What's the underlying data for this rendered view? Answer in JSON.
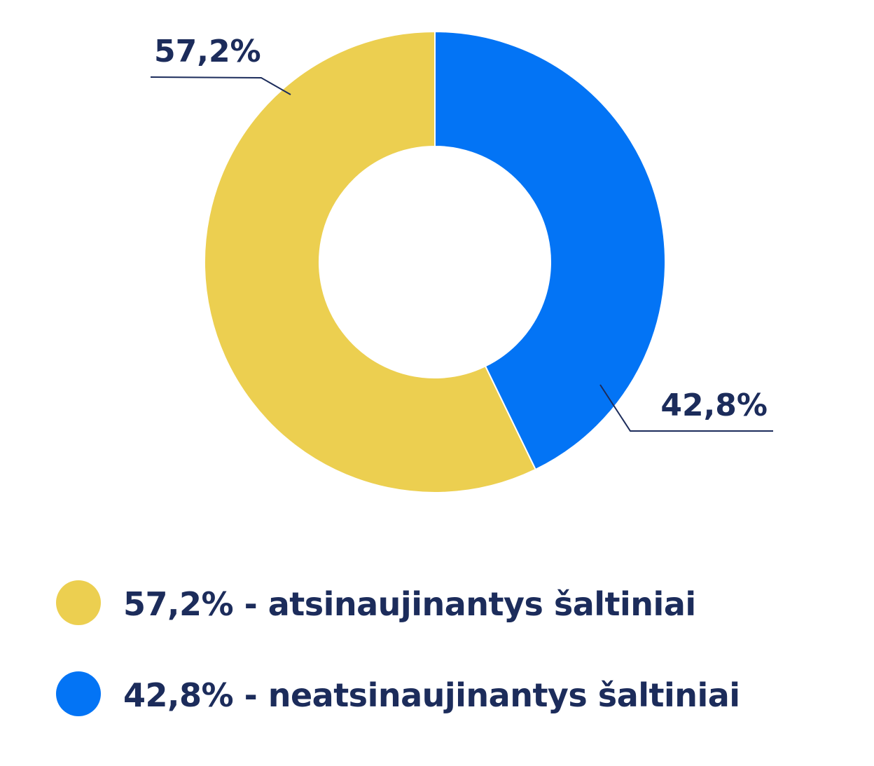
{
  "chart_data": {
    "type": "pie",
    "variant": "donut",
    "title": "",
    "slices": [
      {
        "name": "atsinaujinantys šaltiniai",
        "value": 57.2,
        "label": "57,2%",
        "legend": "57,2% - atsinaujinantys šaltiniai",
        "color": "#ECCF50"
      },
      {
        "name": "neatsinaujinantys šaltiniai",
        "value": 42.8,
        "label": "42,8%",
        "legend": "42,8% - neatsinaujinantys šaltiniai",
        "color": "#0374F5"
      }
    ],
    "legend_position": "bottom"
  },
  "colors": {
    "text": "#1C2C5B",
    "leader_line": "#1C2C5B",
    "background": "#FFFFFF"
  }
}
